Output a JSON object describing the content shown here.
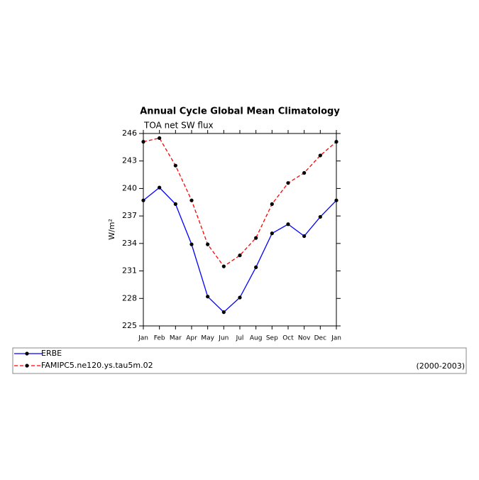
{
  "chart_data": {
    "type": "line",
    "title": "Annual Cycle Global Mean Climatology",
    "subtitle": "TOA net SW flux",
    "y_label": "W/m²",
    "categories": [
      "Jan",
      "Feb",
      "Mar",
      "Apr",
      "May",
      "Jun",
      "Jul",
      "Aug",
      "Sep",
      "Oct",
      "Nov",
      "Dec",
      "Jan"
    ],
    "series": [
      {
        "name": "ERBE",
        "color": "#0000ff",
        "dash": false,
        "values": [
          238.7,
          240.1,
          238.3,
          233.9,
          228.2,
          226.5,
          228.1,
          231.4,
          235.1,
          236.1,
          234.8,
          236.9,
          238.7
        ]
      },
      {
        "name": "FAMIPC5.ne120.ys.tau5m.02",
        "color": "#ff0000",
        "dash": true,
        "values": [
          245.1,
          245.5,
          242.5,
          238.7,
          233.9,
          231.5,
          232.7,
          234.6,
          238.3,
          240.6,
          241.7,
          243.6,
          245.1
        ]
      }
    ],
    "ylim": [
      225,
      246
    ],
    "yticks": [
      225,
      228,
      231,
      234,
      237,
      240,
      243,
      246
    ],
    "annotation": "(2000-2003)"
  }
}
